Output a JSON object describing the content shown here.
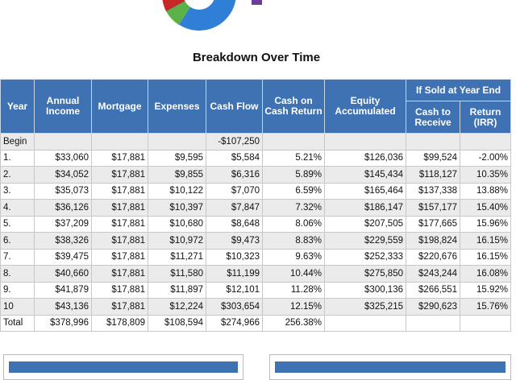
{
  "title": "Breakdown Over Time",
  "table": {
    "group_header": "If Sold at Year End",
    "columns": [
      "Year",
      "Annual Income",
      "Mortgage",
      "Expenses",
      "Cash Flow",
      "Cash on Cash Return",
      "Equity Accumulated",
      "Cash to Receive",
      "Return (IRR)"
    ],
    "rows": [
      [
        "Begin",
        null,
        null,
        null,
        "-$107,250",
        null,
        null,
        null,
        null
      ],
      [
        "1.",
        "$33,060",
        "$17,881",
        "$9,595",
        "$5,584",
        "5.21%",
        "$126,036",
        "$99,524",
        "-2.00%"
      ],
      [
        "2.",
        "$34,052",
        "$17,881",
        "$9,855",
        "$6,316",
        "5.89%",
        "$145,434",
        "$118,127",
        "10.35%"
      ],
      [
        "3.",
        "$35,073",
        "$17,881",
        "$10,122",
        "$7,070",
        "6.59%",
        "$165,464",
        "$137,338",
        "13.88%"
      ],
      [
        "4.",
        "$36,126",
        "$17,881",
        "$10,397",
        "$7,847",
        "7.32%",
        "$186,147",
        "$157,177",
        "15.40%"
      ],
      [
        "5.",
        "$37,209",
        "$17,881",
        "$10,680",
        "$8,648",
        "8.06%",
        "$207,505",
        "$177,665",
        "15.96%"
      ],
      [
        "6.",
        "$38,326",
        "$17,881",
        "$10,972",
        "$9,473",
        "8.83%",
        "$229,559",
        "$198,824",
        "16.15%"
      ],
      [
        "7.",
        "$39,475",
        "$17,881",
        "$11,271",
        "$10,323",
        "9.63%",
        "$252,333",
        "$220,676",
        "16.15%"
      ],
      [
        "8.",
        "$40,660",
        "$17,881",
        "$11,580",
        "$11,199",
        "10.44%",
        "$275,850",
        "$243,244",
        "16.08%"
      ],
      [
        "9.",
        "$41,879",
        "$17,881",
        "$11,897",
        "$12,101",
        "11.28%",
        "$300,136",
        "$266,551",
        "15.92%"
      ],
      [
        "10",
        "$43,136",
        "$17,881",
        "$12,224",
        "$303,654",
        "12.15%",
        "$325,215",
        "$290,623",
        "15.76%"
      ],
      [
        "Total",
        "$378,996",
        "$178,809",
        "$108,594",
        "$274,966",
        "256.38%",
        null,
        null,
        null
      ]
    ]
  }
}
